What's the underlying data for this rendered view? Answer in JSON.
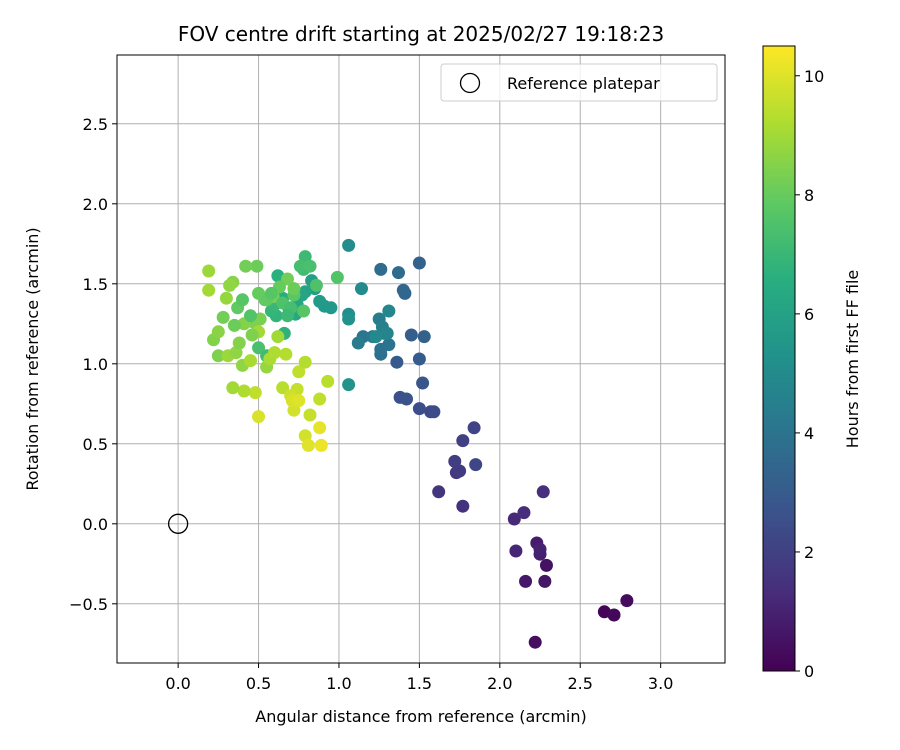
{
  "chart_data": {
    "type": "scatter",
    "title": "FOV centre drift starting at 2025/02/27 19:18:23",
    "xlabel": "Angular distance from reference (arcmin)",
    "ylabel": "Rotation from reference (arcmin)",
    "xlim": [
      -0.38,
      3.4
    ],
    "ylim": [
      -0.87,
      2.93
    ],
    "xticks": [
      0.0,
      0.5,
      1.0,
      1.5,
      2.0,
      2.5,
      3.0
    ],
    "yticks": [
      -0.5,
      0.0,
      0.5,
      1.0,
      1.5,
      2.0,
      2.5
    ],
    "xtick_labels": [
      "0.0",
      "0.5",
      "1.0",
      "1.5",
      "2.0",
      "2.5",
      "3.0"
    ],
    "ytick_labels": [
      "−0.5",
      "0.0",
      "0.5",
      "1.0",
      "1.5",
      "2.0",
      "2.5"
    ],
    "grid": true,
    "legend": {
      "placement": "top-right",
      "entries": [
        "Reference platepar"
      ]
    },
    "reference_point": {
      "x": 0.0,
      "y": 0.0
    },
    "colorbar": {
      "label": "Hours from first FF file",
      "range": [
        0,
        10.5
      ],
      "ticks": [
        0,
        2,
        4,
        6,
        8,
        10
      ],
      "tick_labels": [
        "0",
        "2",
        "4",
        "6",
        "8",
        "10"
      ],
      "colormap": "viridis"
    },
    "points": [
      [
        2.65,
        -0.55,
        0.1
      ],
      [
        2.71,
        -0.57,
        0.2
      ],
      [
        2.79,
        -0.48,
        0.3
      ],
      [
        2.22,
        -0.74,
        0.4
      ],
      [
        2.29,
        -0.26,
        0.5
      ],
      [
        2.28,
        -0.36,
        0.6
      ],
      [
        2.16,
        -0.36,
        0.7
      ],
      [
        2.23,
        -0.12,
        0.8
      ],
      [
        2.25,
        -0.19,
        0.9
      ],
      [
        2.25,
        -0.16,
        1.0
      ],
      [
        2.1,
        -0.17,
        1.1
      ],
      [
        2.09,
        0.03,
        1.2
      ],
      [
        2.15,
        0.07,
        1.3
      ],
      [
        2.27,
        0.2,
        1.4
      ],
      [
        1.77,
        0.11,
        1.5
      ],
      [
        1.62,
        0.2,
        1.6
      ],
      [
        1.73,
        0.32,
        1.7
      ],
      [
        1.75,
        0.33,
        1.8
      ],
      [
        1.72,
        0.39,
        1.9
      ],
      [
        1.77,
        0.52,
        2.0
      ],
      [
        1.84,
        0.6,
        2.1
      ],
      [
        1.85,
        0.37,
        2.2
      ],
      [
        1.57,
        0.7,
        2.3
      ],
      [
        1.59,
        0.7,
        2.4
      ],
      [
        1.5,
        0.72,
        2.5
      ],
      [
        1.38,
        0.79,
        2.6
      ],
      [
        1.42,
        0.78,
        2.7
      ],
      [
        1.52,
        0.88,
        2.8
      ],
      [
        1.36,
        1.01,
        2.9
      ],
      [
        1.5,
        1.03,
        3.0
      ],
      [
        1.45,
        1.18,
        3.1
      ],
      [
        1.53,
        1.17,
        3.2
      ],
      [
        1.5,
        1.63,
        3.3
      ],
      [
        1.41,
        1.44,
        3.4
      ],
      [
        1.4,
        1.46,
        3.5
      ],
      [
        1.37,
        1.57,
        3.6
      ],
      [
        1.26,
        1.59,
        3.7
      ],
      [
        1.26,
        1.06,
        3.8
      ],
      [
        1.26,
        1.09,
        3.9
      ],
      [
        1.31,
        1.12,
        4.0
      ],
      [
        1.15,
        1.17,
        4.1
      ],
      [
        1.21,
        1.17,
        4.2
      ],
      [
        1.12,
        1.13,
        4.3
      ],
      [
        1.25,
        1.28,
        4.4
      ],
      [
        1.27,
        1.23,
        4.5
      ],
      [
        1.28,
        1.19,
        4.6
      ],
      [
        1.3,
        1.19,
        4.7
      ],
      [
        1.31,
        1.33,
        4.8
      ],
      [
        1.23,
        1.17,
        4.9
      ],
      [
        1.14,
        1.47,
        5.0
      ],
      [
        1.06,
        1.74,
        5.1
      ],
      [
        1.06,
        1.31,
        5.2
      ],
      [
        1.06,
        1.28,
        5.3
      ],
      [
        1.06,
        0.87,
        5.4
      ],
      [
        0.95,
        1.35,
        5.5
      ],
      [
        0.91,
        1.36,
        5.6
      ],
      [
        0.88,
        1.39,
        5.7
      ],
      [
        0.85,
        1.47,
        5.8
      ],
      [
        0.83,
        1.52,
        5.9
      ],
      [
        0.79,
        1.45,
        6.0
      ],
      [
        0.77,
        1.43,
        6.1
      ],
      [
        0.74,
        1.37,
        6.2
      ],
      [
        0.73,
        1.31,
        6.3
      ],
      [
        0.69,
        1.34,
        6.4
      ],
      [
        0.65,
        1.41,
        6.5
      ],
      [
        0.62,
        1.55,
        6.6
      ],
      [
        0.66,
        1.19,
        6.7
      ],
      [
        0.61,
        1.3,
        6.8
      ],
      [
        0.58,
        1.33,
        6.9
      ],
      [
        0.6,
        1.37,
        7.0
      ],
      [
        0.79,
        1.67,
        7.1
      ],
      [
        0.78,
        1.59,
        7.2
      ],
      [
        0.76,
        1.61,
        7.3
      ],
      [
        0.82,
        1.61,
        7.4
      ],
      [
        0.86,
        1.49,
        7.5
      ],
      [
        0.99,
        1.54,
        7.6
      ],
      [
        0.78,
        1.33,
        7.7
      ],
      [
        0.72,
        1.43,
        7.8
      ],
      [
        0.54,
        1.4,
        7.9
      ],
      [
        0.5,
        1.44,
        8.0
      ],
      [
        0.49,
        1.61,
        8.1
      ],
      [
        0.42,
        1.61,
        8.2
      ],
      [
        0.51,
        1.28,
        8.3
      ],
      [
        0.47,
        1.26,
        8.4
      ],
      [
        0.41,
        1.25,
        8.5
      ],
      [
        0.34,
        1.51,
        8.6
      ],
      [
        0.32,
        1.49,
        8.7
      ],
      [
        0.3,
        1.41,
        8.8
      ],
      [
        0.19,
        1.58,
        8.9
      ],
      [
        0.19,
        1.46,
        9.0
      ],
      [
        0.22,
        1.15,
        8.5
      ],
      [
        0.25,
        1.05,
        8.4
      ],
      [
        0.25,
        1.2,
        8.6
      ],
      [
        0.28,
        1.29,
        8.2
      ],
      [
        0.35,
        1.24,
        8.1
      ],
      [
        0.37,
        1.35,
        7.9
      ],
      [
        0.4,
        1.4,
        7.7
      ],
      [
        0.45,
        1.3,
        7.6
      ],
      [
        0.5,
        1.1,
        7.4
      ],
      [
        0.55,
        1.05,
        7.2
      ],
      [
        0.55,
        0.98,
        8.8
      ],
      [
        0.62,
        1.17,
        9.0
      ],
      [
        0.57,
        1.03,
        9.1
      ],
      [
        0.6,
        1.07,
        9.2
      ],
      [
        0.67,
        1.06,
        9.3
      ],
      [
        0.65,
        0.85,
        9.4
      ],
      [
        0.75,
        0.95,
        9.5
      ],
      [
        0.74,
        0.84,
        9.6
      ],
      [
        0.7,
        0.8,
        9.7
      ],
      [
        0.72,
        0.71,
        9.8
      ],
      [
        0.71,
        0.77,
        9.9
      ],
      [
        0.75,
        0.77,
        10.0
      ],
      [
        0.79,
        1.01,
        9.3
      ],
      [
        0.93,
        0.89,
        9.4
      ],
      [
        0.88,
        0.78,
        9.5
      ],
      [
        0.82,
        0.68,
        9.6
      ],
      [
        0.79,
        0.55,
        9.8
      ],
      [
        0.81,
        0.49,
        10.0
      ],
      [
        0.88,
        0.6,
        10.1
      ],
      [
        0.89,
        0.49,
        10.2
      ],
      [
        0.5,
        0.67,
        9.9
      ],
      [
        0.48,
        0.82,
        9.5
      ],
      [
        0.41,
        0.83,
        9.2
      ],
      [
        0.34,
        0.85,
        9.0
      ],
      [
        0.31,
        1.05,
        8.9
      ],
      [
        0.36,
        1.07,
        8.7
      ],
      [
        0.4,
        0.99,
        8.7
      ],
      [
        0.45,
        1.02,
        9.1
      ],
      [
        0.5,
        1.2,
        9.0
      ],
      [
        0.59,
        1.42,
        8.3
      ],
      [
        0.68,
        1.53,
        8.2
      ],
      [
        0.72,
        1.47,
        8.1
      ],
      [
        0.63,
        1.48,
        8.0
      ],
      [
        0.55,
        1.4,
        7.9
      ],
      [
        0.58,
        1.44,
        7.7
      ],
      [
        0.65,
        1.38,
        7.5
      ],
      [
        0.7,
        1.35,
        7.3
      ],
      [
        0.68,
        1.3,
        7.1
      ],
      [
        0.46,
        1.18,
        8.4
      ],
      [
        0.38,
        1.13,
        8.5
      ]
    ]
  }
}
